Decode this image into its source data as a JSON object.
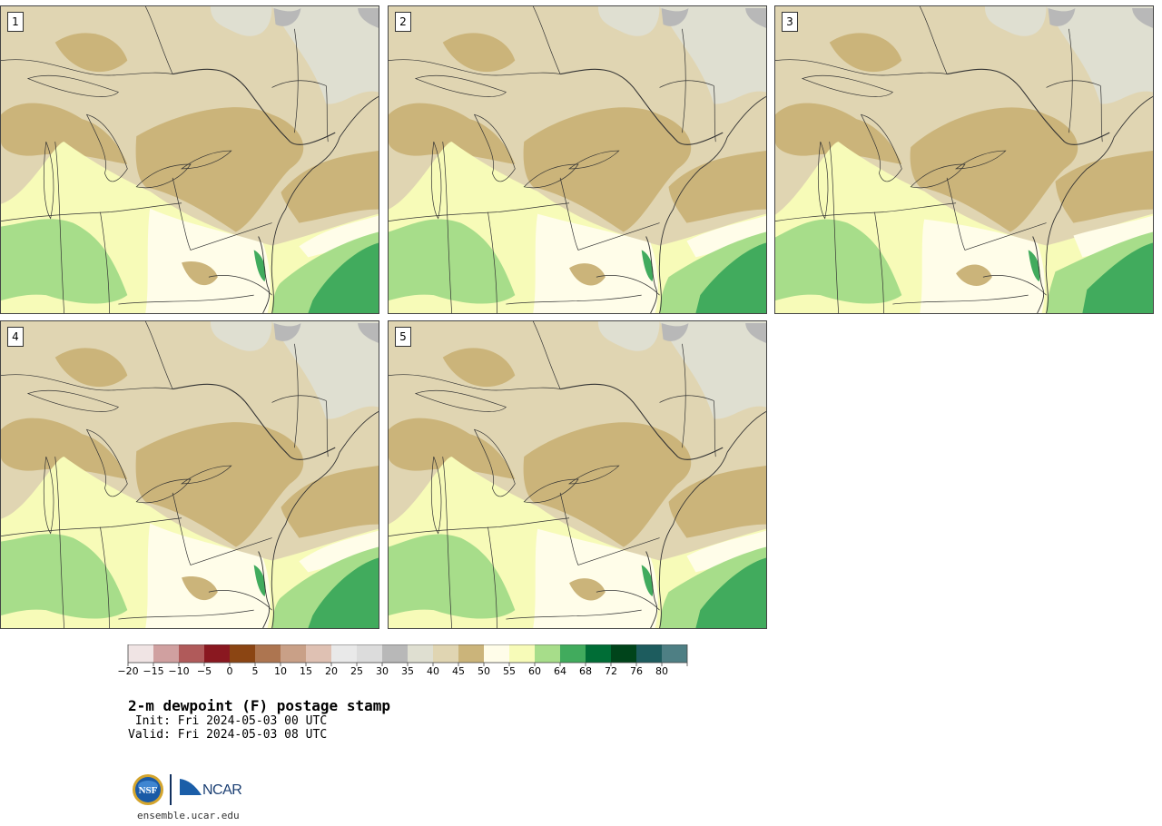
{
  "panels": [
    {
      "label": "1"
    },
    {
      "label": "2"
    },
    {
      "label": "3"
    },
    {
      "label": "4"
    },
    {
      "label": "5"
    }
  ],
  "colorbar": {
    "colors": [
      "#f0e4e4",
      "#d0a0a0",
      "#b05a5a",
      "#8a1820",
      "#8b4513",
      "#ad7550",
      "#c9a087",
      "#dfc1b3",
      "#e9e9e9",
      "#dcdcdc",
      "#b8b8b8",
      "#dfdfd1",
      "#e0d5b2",
      "#cbb47a",
      "#fffde9",
      "#f7fbb8",
      "#a7dd8a",
      "#41ab5d",
      "#006d36",
      "#00441b",
      "#1d5c5e",
      "#4e7f84"
    ],
    "tick_labels": [
      "−20",
      "−15",
      "−10",
      "−5",
      "0",
      "5",
      "10",
      "15",
      "20",
      "25",
      "30",
      "35",
      "40",
      "45",
      "50",
      "55",
      "60",
      "64",
      "68",
      "72",
      "76",
      "80"
    ]
  },
  "title": "2-m dewpoint (F) postage stamp",
  "init_line": " Init: Fri 2024-05-03 00 UTC",
  "valid_line": "Valid: Fri 2024-05-03 08 UTC",
  "logos": {
    "nsf": "NSF",
    "ncar": "NCAR"
  },
  "url": "ensemble.ucar.edu"
}
